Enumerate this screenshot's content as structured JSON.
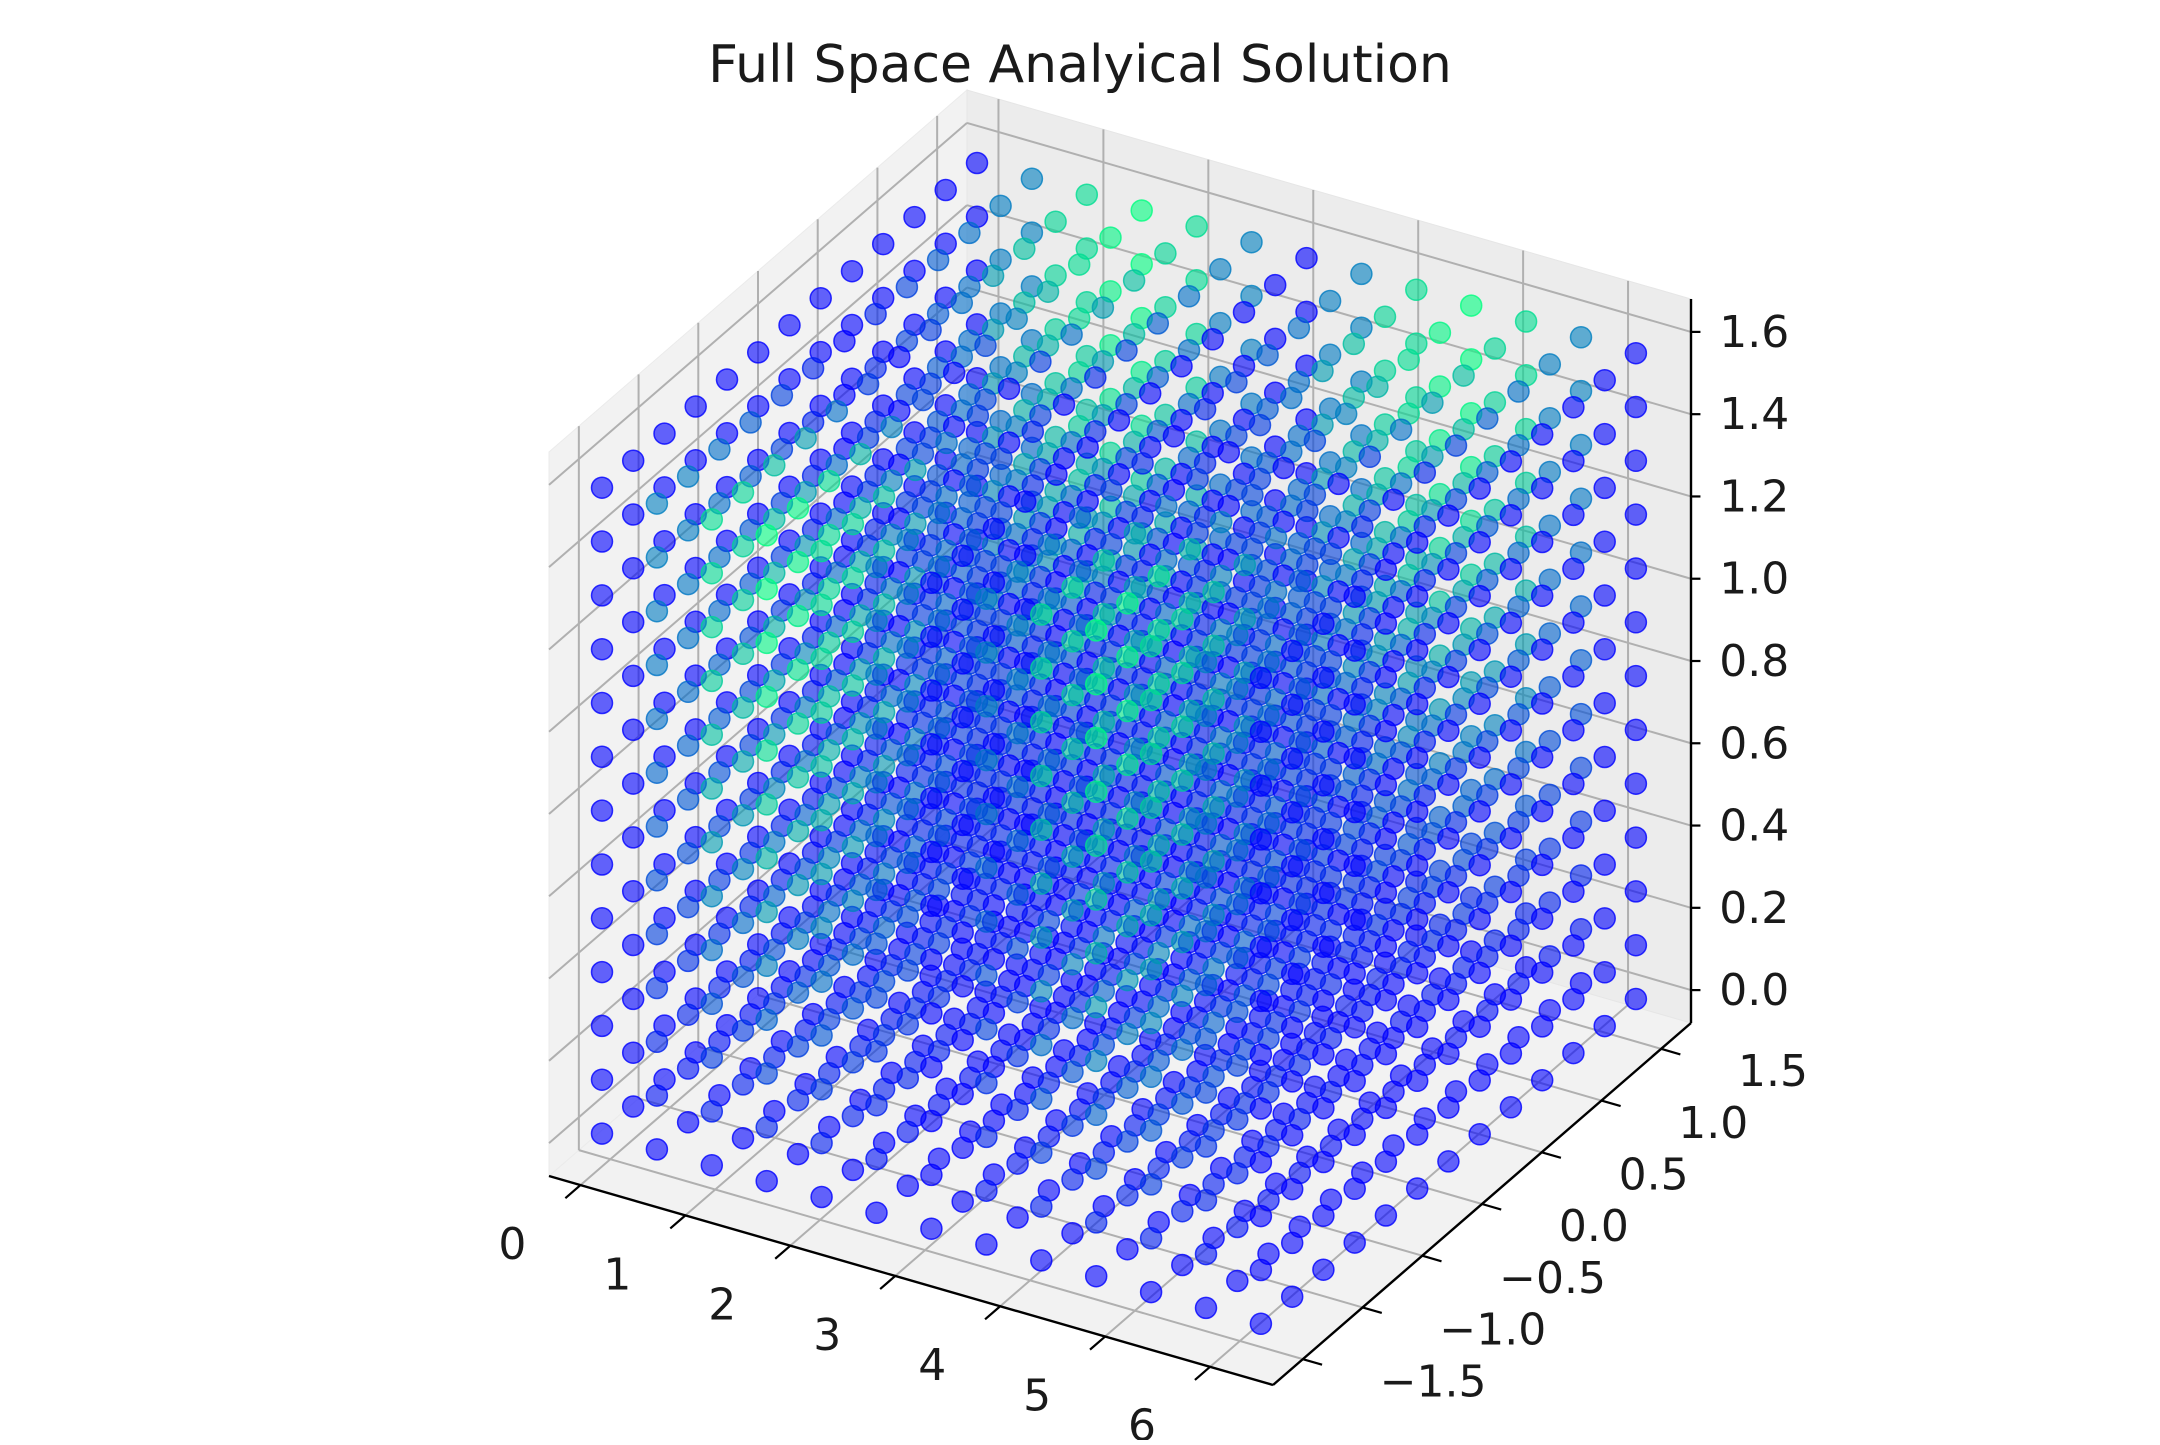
{
  "chart_data": {
    "type": "scatter",
    "projection": "3d",
    "title": "Full Space Analyical Solution",
    "xlabel": "",
    "ylabel": "",
    "zlabel": "",
    "x_ticks": [
      "0",
      "1",
      "2",
      "3",
      "4",
      "5",
      "6"
    ],
    "y_ticks": [
      "−1.5",
      "−1.0",
      "−0.5",
      "0.0",
      "0.5",
      "1.0",
      "1.5"
    ],
    "z_ticks": [
      "0.0",
      "0.2",
      "0.4",
      "0.6",
      "0.8",
      "1.0",
      "1.2",
      "1.4",
      "1.6"
    ],
    "xlim": [
      -0.3,
      6.6
    ],
    "ylim": [
      -1.75,
      1.75
    ],
    "zlim": [
      -0.08,
      1.68
    ],
    "grid": true,
    "legend": "none",
    "points": {
      "x_range": [
        0,
        6.28
      ],
      "y_range": [
        -1.57,
        1.57
      ],
      "z_range": [
        0,
        1.57
      ],
      "per_axis_count": 13,
      "value_formula": "|sin(x) * sin(y) * sin(z)|"
    },
    "colormap": {
      "low": "#0000ff",
      "high": "#00ff80",
      "alpha": 0.6
    }
  }
}
